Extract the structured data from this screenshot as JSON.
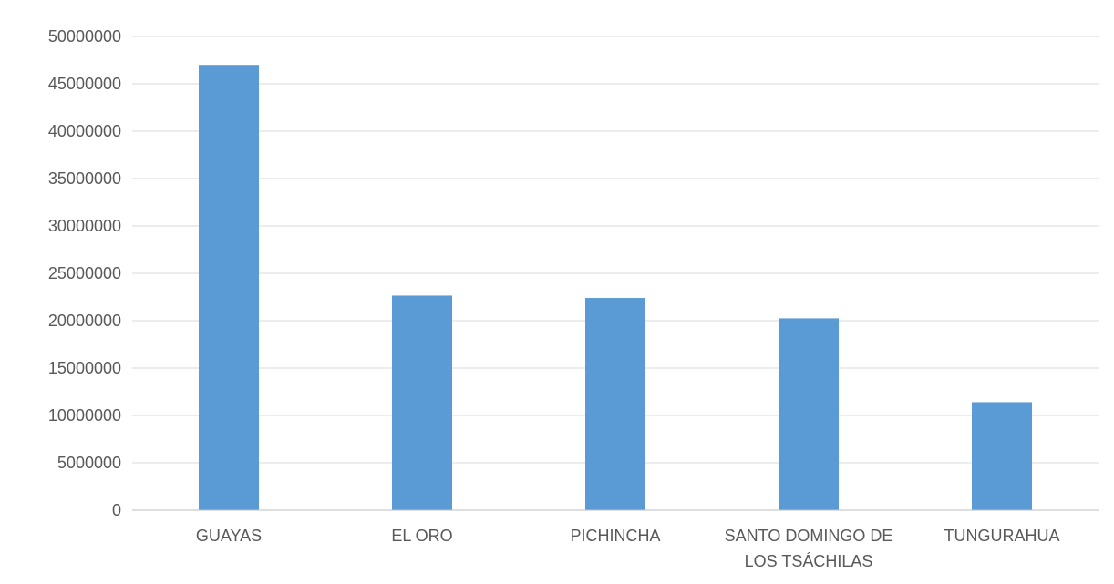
{
  "colors": {
    "bar": "#5b9bd5",
    "grid": "#d9d9d9",
    "axis": "#bfbfbf",
    "text": "#595959"
  },
  "chart_data": {
    "type": "bar",
    "title": "",
    "xlabel": "",
    "ylabel": "",
    "categories": [
      [
        "GUAYAS"
      ],
      [
        "EL ORO"
      ],
      [
        "PICHINCHA"
      ],
      [
        "SANTO DOMINGO DE",
        "LOS TSÁCHILAS"
      ],
      [
        "TUNGURAHUA"
      ]
    ],
    "values": [
      47000000,
      22650000,
      22400000,
      20250000,
      11400000
    ],
    "ylim": [
      0,
      50000000
    ],
    "yticks": [
      "0",
      "5000000",
      "10000000",
      "15000000",
      "20000000",
      "25000000",
      "30000000",
      "35000000",
      "40000000",
      "45000000",
      "50000000"
    ],
    "grid": true,
    "legend": "none"
  }
}
